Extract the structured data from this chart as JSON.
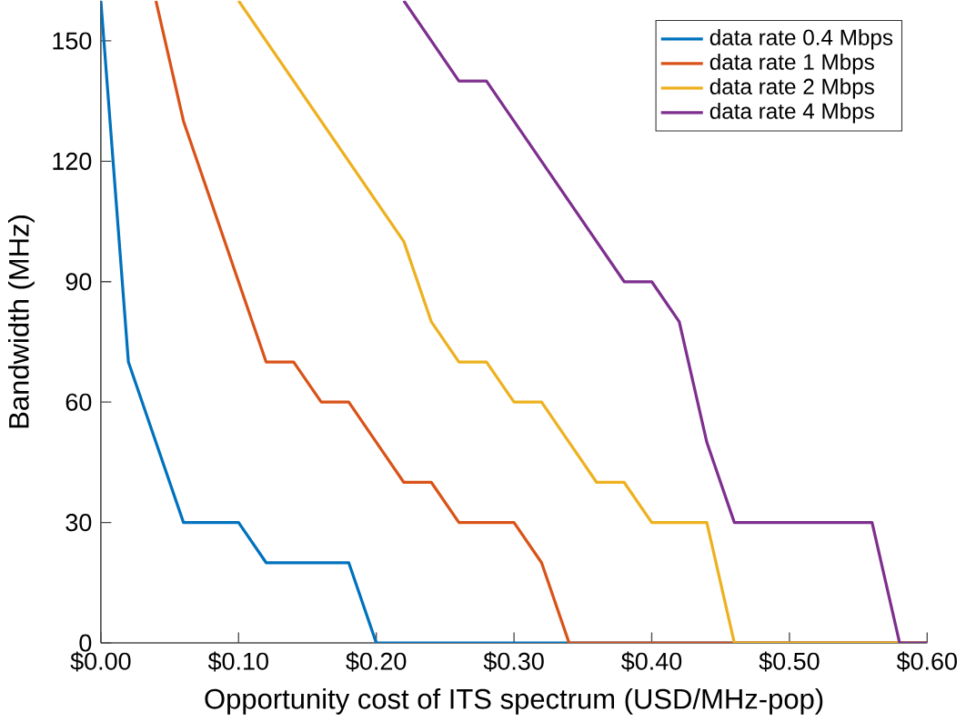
{
  "chart_data": {
    "type": "line",
    "xlabel": "Opportunity cost of ITS spectrum (USD/MHz-pop)",
    "ylabel": "Bandwidth (MHz)",
    "xlim": [
      0,
      0.6
    ],
    "ylim": [
      0,
      160
    ],
    "xticks": [
      {
        "value": 0,
        "label": "$0.00"
      },
      {
        "value": 0.1,
        "label": "$0.10"
      },
      {
        "value": 0.2,
        "label": "$0.20"
      },
      {
        "value": 0.3,
        "label": "$0.30"
      },
      {
        "value": 0.4,
        "label": "$0.40"
      },
      {
        "value": 0.5,
        "label": "$0.50"
      },
      {
        "value": 0.6,
        "label": "$0.60"
      }
    ],
    "yticks": [
      0,
      30,
      60,
      90,
      120,
      150
    ],
    "legend": "top right",
    "grid": false,
    "marker": "none",
    "line_style": "solid",
    "series": [
      {
        "name": "data rate 0.4 Mbps",
        "color": "#0072bd",
        "x": [
          0,
          0.02,
          0.06,
          0.1,
          0.12,
          0.18,
          0.2,
          0.6
        ],
        "values": [
          160,
          70,
          30,
          30,
          20,
          20,
          0,
          0
        ]
      },
      {
        "name": "data rate 1 Mbps",
        "color": "#d95319",
        "x": [
          0.04,
          0.06,
          0.12,
          0.14,
          0.16,
          0.18,
          0.22,
          0.24,
          0.26,
          0.3,
          0.32,
          0.34,
          0.6
        ],
        "values": [
          160,
          130,
          70,
          70,
          60,
          60,
          40,
          40,
          30,
          30,
          20,
          0,
          0
        ]
      },
      {
        "name": "data rate 2 Mbps",
        "color": "#edb120",
        "x": [
          0.1,
          0.22,
          0.24,
          0.26,
          0.28,
          0.3,
          0.32,
          0.36,
          0.38,
          0.4,
          0.44,
          0.46,
          0.6
        ],
        "values": [
          160,
          100,
          80,
          70,
          70,
          60,
          60,
          40,
          40,
          30,
          30,
          0,
          0
        ]
      },
      {
        "name": "data rate 4 Mbps",
        "color": "#7e2f8e",
        "x": [
          0.22,
          0.26,
          0.28,
          0.38,
          0.4,
          0.42,
          0.44,
          0.46,
          0.56,
          0.58,
          0.6
        ],
        "values": [
          160,
          140,
          140,
          90,
          90,
          80,
          50,
          30,
          30,
          0,
          0
        ]
      }
    ]
  }
}
